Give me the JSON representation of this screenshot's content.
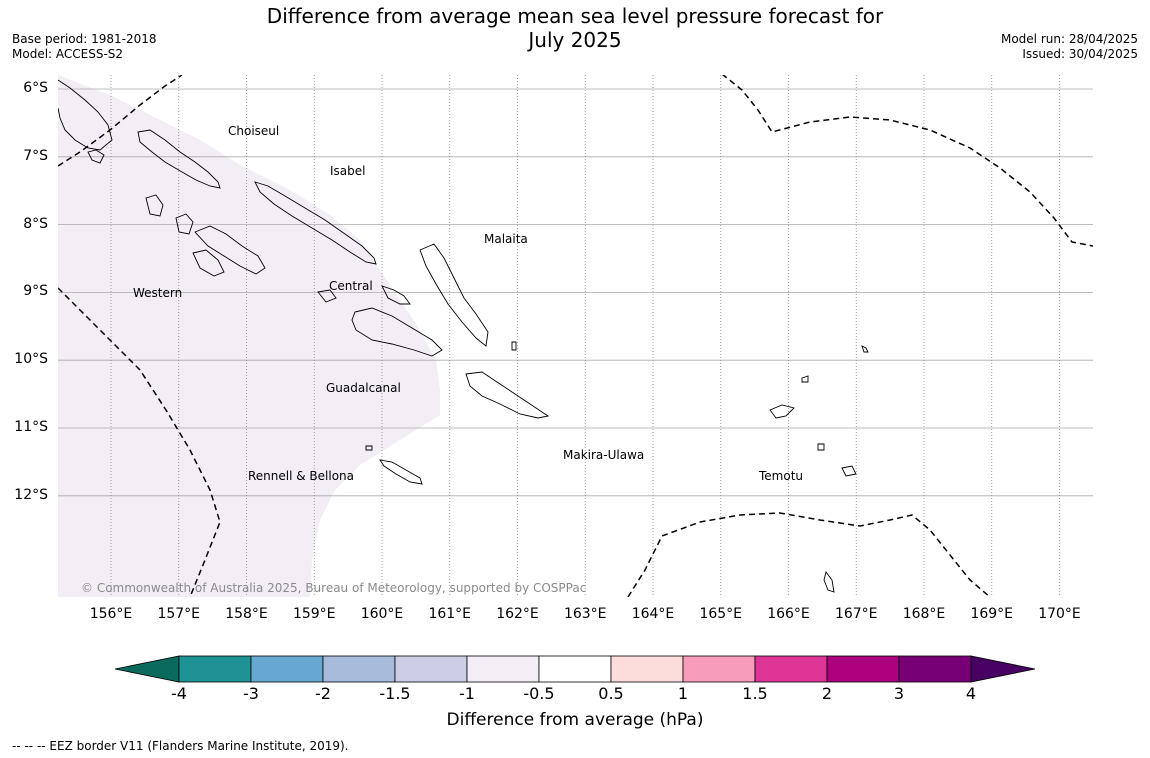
{
  "title_line1": "Difference from average mean sea level pressure forecast for",
  "title_line2": "July 2025",
  "meta_left": {
    "base_period": "Base period: 1981-2018",
    "model": "Model: ACCESS-S2"
  },
  "meta_right": {
    "model_run": "Model run: 28/04/2025",
    "issued": "Issued: 30/04/2025"
  },
  "map": {
    "lat_labels": [
      "6°S",
      "7°S",
      "8°S",
      "9°S",
      "10°S",
      "11°S",
      "12°S"
    ],
    "lon_labels": [
      "156°E",
      "157°E",
      "158°E",
      "159°E",
      "160°E",
      "161°E",
      "162°E",
      "163°E",
      "164°E",
      "165°E",
      "166°E",
      "167°E",
      "168°E",
      "169°E",
      "170°E"
    ],
    "regions": {
      "choiseul": "Choiseul",
      "isabel": "Isabel",
      "malaita": "Malaita",
      "western": "Western",
      "central": "Central",
      "guadalcanal": "Guadalcanal",
      "makira": "Makira-Ulawa",
      "rennell": "Rennell & Bellona",
      "temotu": "Temotu"
    },
    "copyright": "© Commonwealth of Australia 2025, Bureau of Meteorology, supported by COSPPac",
    "anomaly_zone_category": "-1 to -0.5",
    "colors": {
      "anomaly_fill": "#f3edf6",
      "grid": "#aaaaaa",
      "eez_line": "#000000"
    }
  },
  "colorbar": {
    "ticks": [
      "-4",
      "-3",
      "-2",
      "-1.5",
      "-1",
      "-0.5",
      "0.5",
      "1",
      "1.5",
      "2",
      "3",
      "4"
    ],
    "colors": [
      "#1e9294",
      "#66a8d0",
      "#a7bbdb",
      "#cdcee5",
      "#f3edf6",
      "#ffffff",
      "#fddcdc",
      "#f89cbc",
      "#dc3596",
      "#ad007e",
      "#780077"
    ],
    "under_color": "#0a6a5e",
    "over_color": "#480062",
    "label": "Difference from average (hPa)"
  },
  "footnote": "--  --  -- EEZ border V11 (Flanders Marine Institute, 2019)."
}
